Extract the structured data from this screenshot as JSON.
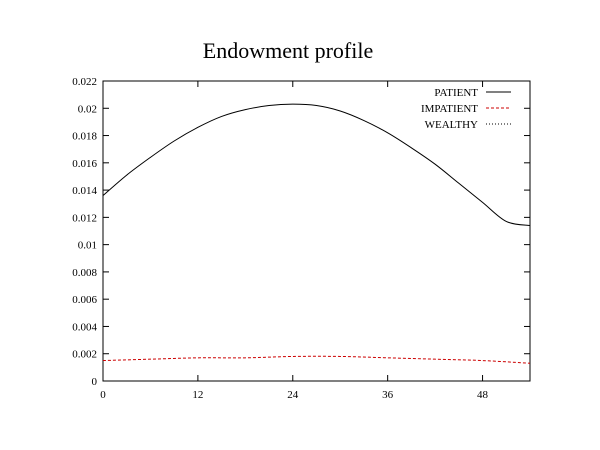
{
  "chart_data": {
    "type": "line",
    "title": "Endowment profile",
    "xlabel": "",
    "ylabel": "",
    "xlim": [
      0,
      54
    ],
    "ylim": [
      0,
      0.022
    ],
    "xticks": [
      0,
      12,
      24,
      36,
      48
    ],
    "xtick_labels": [
      "0",
      "12",
      "24",
      "36",
      "48"
    ],
    "yticks": [
      0,
      0.002,
      0.004,
      0.006,
      0.008,
      0.01,
      0.012,
      0.014,
      0.016,
      0.018,
      0.02,
      0.022
    ],
    "ytick_labels": [
      "0",
      "0.002",
      "0.004",
      "0.006",
      "0.008",
      "0.01",
      "0.012",
      "0.014",
      "0.016",
      "0.018",
      "0.02",
      "0.022"
    ],
    "grid": false,
    "legend_position": "top-right",
    "series": [
      {
        "name": "PATIENT",
        "color": "#000000",
        "style": "solid",
        "x": [
          0,
          3,
          6,
          9,
          12,
          15,
          18,
          21,
          24,
          27,
          30,
          33,
          36,
          39,
          42,
          45,
          48,
          51,
          54
        ],
        "y": [
          0.0136,
          0.0151,
          0.0164,
          0.0176,
          0.0186,
          0.0194,
          0.0199,
          0.0202,
          0.0203,
          0.0202,
          0.0198,
          0.0191,
          0.0182,
          0.0171,
          0.0159,
          0.0145,
          0.0131,
          0.0117,
          0.0114
        ]
      },
      {
        "name": "IMPATIENT",
        "color": "#cc0000",
        "style": "dashed",
        "x": [
          0,
          6,
          12,
          18,
          24,
          30,
          36,
          42,
          48,
          54
        ],
        "y": [
          0.0015,
          0.0016,
          0.0017,
          0.0017,
          0.0018,
          0.0018,
          0.0017,
          0.0016,
          0.0015,
          0.0013
        ]
      },
      {
        "name": "WEALTHY",
        "color": "#000000",
        "style": "dotted",
        "x": [],
        "y": []
      }
    ]
  }
}
